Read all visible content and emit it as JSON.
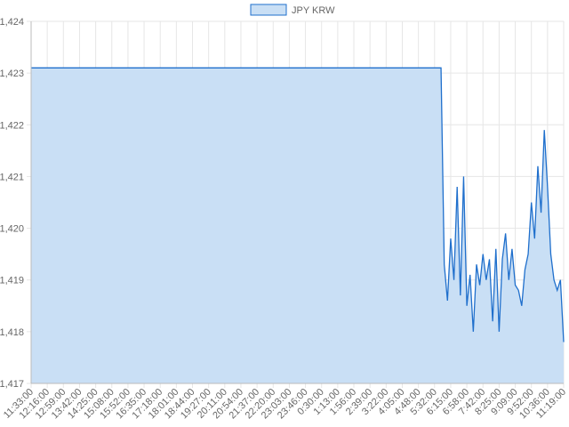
{
  "chart_data": {
    "type": "line",
    "categories": [
      "11:33:00",
      null,
      null,
      null,
      null,
      "12:16:00",
      null,
      null,
      null,
      null,
      "12:59:00",
      null,
      null,
      null,
      null,
      "13:42:00",
      null,
      null,
      null,
      null,
      "14:25:00",
      null,
      null,
      null,
      null,
      "15:08:00",
      null,
      null,
      null,
      null,
      "15:52:00",
      null,
      null,
      null,
      null,
      "16:35:00",
      null,
      null,
      null,
      null,
      "17:18:00",
      null,
      null,
      null,
      null,
      "18:01:00",
      null,
      null,
      null,
      null,
      "18:44:00",
      null,
      null,
      null,
      null,
      "19:27:00",
      null,
      null,
      null,
      null,
      "20:11:00",
      null,
      null,
      null,
      null,
      "20:54:00",
      null,
      null,
      null,
      null,
      "21:37:00",
      null,
      null,
      null,
      null,
      "22:20:00",
      null,
      null,
      null,
      null,
      "23:03:00",
      null,
      null,
      null,
      null,
      "23:46:00",
      null,
      null,
      null,
      null,
      "0:30:00",
      null,
      null,
      null,
      null,
      "1:13:00",
      null,
      null,
      null,
      null,
      "1:56:00",
      null,
      null,
      null,
      null,
      "2:39:00",
      null,
      null,
      null,
      null,
      "3:22:00",
      null,
      null,
      null,
      null,
      "4:05:00",
      null,
      null,
      null,
      null,
      "4:48:00",
      null,
      null,
      null,
      null,
      "5:32:00",
      null,
      null,
      null,
      null,
      "6:15:00",
      null,
      null,
      null,
      null,
      "6:58:00",
      null,
      null,
      null,
      null,
      "7:42:00",
      null,
      null,
      null,
      null,
      "8:25:00",
      null,
      null,
      null,
      null,
      "9:09:00",
      null,
      null,
      null,
      null,
      "9:52:00",
      null,
      null,
      null,
      null,
      "10:36:00",
      null,
      null,
      null,
      null,
      "11:19:00"
    ],
    "series": [
      {
        "name": "JPY KRW",
        "color": "#1f6fcc",
        "fill": "#c9dff5",
        "values": [
          1423.1,
          1423.1,
          1423.1,
          1423.1,
          1423.1,
          1423.1,
          1423.1,
          1423.1,
          1423.1,
          1423.1,
          1423.1,
          1423.1,
          1423.1,
          1423.1,
          1423.1,
          1423.1,
          1423.1,
          1423.1,
          1423.1,
          1423.1,
          1423.1,
          1423.1,
          1423.1,
          1423.1,
          1423.1,
          1423.1,
          1423.1,
          1423.1,
          1423.1,
          1423.1,
          1423.1,
          1423.1,
          1423.1,
          1423.1,
          1423.1,
          1423.1,
          1423.1,
          1423.1,
          1423.1,
          1423.1,
          1423.1,
          1423.1,
          1423.1,
          1423.1,
          1423.1,
          1423.1,
          1423.1,
          1423.1,
          1423.1,
          1423.1,
          1423.1,
          1423.1,
          1423.1,
          1423.1,
          1423.1,
          1423.1,
          1423.1,
          1423.1,
          1423.1,
          1423.1,
          1423.1,
          1423.1,
          1423.1,
          1423.1,
          1423.1,
          1423.1,
          1423.1,
          1423.1,
          1423.1,
          1423.1,
          1423.1,
          1423.1,
          1423.1,
          1423.1,
          1423.1,
          1423.1,
          1423.1,
          1423.1,
          1423.1,
          1423.1,
          1423.1,
          1423.1,
          1423.1,
          1423.1,
          1423.1,
          1423.1,
          1423.1,
          1423.1,
          1423.1,
          1423.1,
          1423.1,
          1423.1,
          1423.1,
          1423.1,
          1423.1,
          1423.1,
          1423.1,
          1423.1,
          1423.1,
          1423.1,
          1423.1,
          1423.1,
          1423.1,
          1423.1,
          1423.1,
          1423.1,
          1423.1,
          1423.1,
          1423.1,
          1423.1,
          1423.1,
          1423.1,
          1423.1,
          1423.1,
          1423.1,
          1423.1,
          1423.1,
          1423.1,
          1423.1,
          1423.1,
          1423.1,
          1423.1,
          1423.1,
          1423.1,
          1423.1,
          1423.1,
          1423.1,
          1423.1,
          1419.3,
          1418.6,
          1419.8,
          1419.0,
          1420.8,
          1418.7,
          1421.0,
          1418.5,
          1419.1,
          1418.0,
          1419.3,
          1418.9,
          1419.5,
          1419.0,
          1419.4,
          1418.2,
          1419.6,
          1418.0,
          1419.4,
          1419.9,
          1419.0,
          1419.6,
          1418.9,
          1418.8,
          1418.5,
          1419.2,
          1419.5,
          1420.5,
          1419.8,
          1421.2,
          1420.3,
          1421.9,
          1420.8,
          1419.5,
          1419.0,
          1418.8,
          1419.0,
          1417.8
        ]
      }
    ],
    "ylim": [
      1417,
      1424
    ],
    "yticks": [
      {
        "value": 1417,
        "label": "1,417"
      },
      {
        "value": 1418,
        "label": "1,418"
      },
      {
        "value": 1419,
        "label": "1,419"
      },
      {
        "value": 1420,
        "label": "1,420"
      },
      {
        "value": 1421,
        "label": "1,421"
      },
      {
        "value": 1422,
        "label": "1,422"
      },
      {
        "value": 1423,
        "label": "1,423"
      },
      {
        "value": 1424,
        "label": "1,424"
      }
    ],
    "grid": true,
    "legend": "top"
  }
}
